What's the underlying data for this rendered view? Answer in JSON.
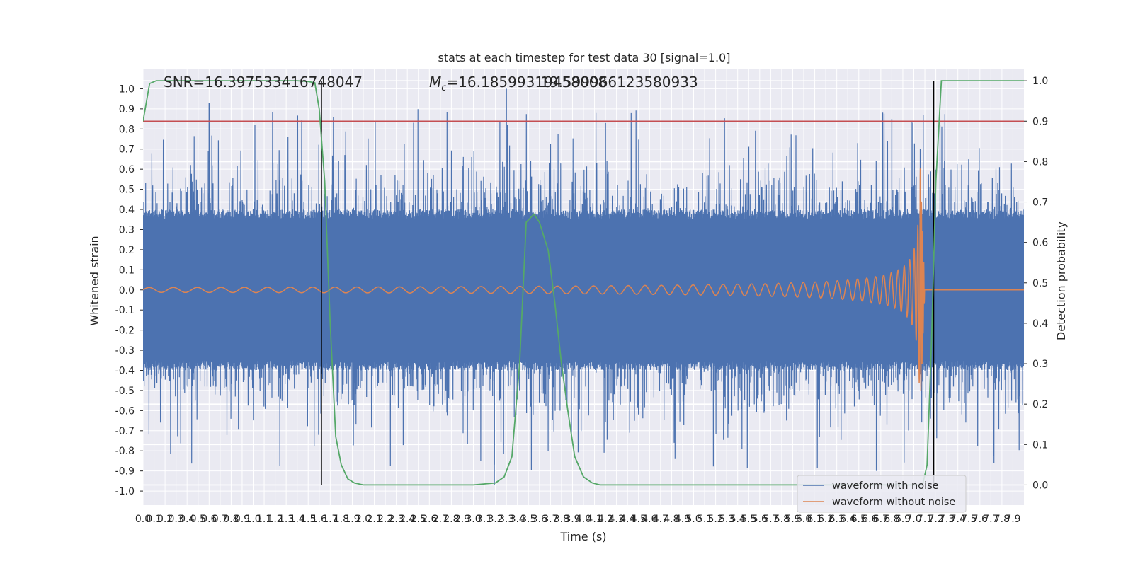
{
  "chart_data": {
    "type": "line",
    "title": "stats at each timestep for test data 30 [signal=1.0]",
    "xlabel": "Time (s)",
    "ylabel": "Whitened strain",
    "ylabel_right": "Detection probability",
    "xlim": [
      0.0,
      8.0
    ],
    "ylim": [
      -1.07,
      1.1
    ],
    "ylim_right": [
      -0.05,
      1.03
    ],
    "x_ticks": [
      "0.0",
      "0.1",
      "0.2",
      "0.3",
      "0.4",
      "0.5",
      "0.6",
      "0.7",
      "0.8",
      "0.9",
      "1.0",
      "1.1",
      "1.2",
      "1.3",
      "1.4",
      "1.5",
      "1.6",
      "1.7",
      "1.8",
      "1.9",
      "2.0",
      "2.1",
      "2.2",
      "2.3",
      "2.4",
      "2.5",
      "2.6",
      "2.7",
      "2.8",
      "2.9",
      "3.0",
      "3.1",
      "3.2",
      "3.3",
      "3.4",
      "3.5",
      "3.6",
      "3.7",
      "3.8",
      "3.9",
      "4.0",
      "4.1",
      "4.2",
      "4.3",
      "4.4",
      "4.5",
      "4.6",
      "4.7",
      "4.8",
      "4.9",
      "5.0",
      "5.1",
      "5.2",
      "5.3",
      "5.4",
      "5.5",
      "5.6",
      "5.7",
      "5.8",
      "5.9",
      "6.0",
      "6.1",
      "6.2",
      "6.3",
      "6.4",
      "6.5",
      "6.6",
      "6.7",
      "6.8",
      "6.9",
      "7.0",
      "7.1",
      "7.2",
      "7.3",
      "7.4",
      "7.5",
      "7.6",
      "7.7",
      "7.8",
      "7.9"
    ],
    "y_ticks_left": [
      "1.0",
      "0.9",
      "0.8",
      "0.7",
      "0.6",
      "0.5",
      "0.4",
      "0.3",
      "0.2",
      "0.1",
      "0.0",
      "-0.1",
      "-0.2",
      "-0.3",
      "-0.4",
      "-0.5",
      "-0.6",
      "-0.7",
      "-0.8",
      "-0.9",
      "-1.0"
    ],
    "y_ticks_right": [
      "1.0",
      "0.9",
      "0.8",
      "0.7",
      "0.6",
      "0.5",
      "0.4",
      "0.3",
      "0.2",
      "0.1",
      "0.0"
    ],
    "annotations": {
      "snr": "SNR=16.397533416748047",
      "mc_prefix": "M",
      "mc_sub": "c",
      "mc_value": "=16.18599319458008",
      "mc_overlap": "19.599966123580933"
    },
    "threshold_right": 0.9,
    "threshold_color": "#c44e52",
    "event_markers_x": [
      1.62,
      7.18
    ],
    "marker_color": "#000000",
    "series": [
      {
        "name": "waveform with noise",
        "color": "#4c72b0",
        "envelope_core": 0.4,
        "peak_min": -0.97,
        "peak_max": 1.0
      },
      {
        "name": "waveform without noise",
        "color": "#dd8452",
        "chirp": {
          "start_amplitude": 0.012,
          "peak_time": 7.05,
          "peak_amplitude": 0.73,
          "end_time": 7.1
        }
      },
      {
        "color": "#55a868",
        "axis": "right",
        "x": [
          0.0,
          0.06,
          0.12,
          0.2,
          1.3,
          1.4,
          1.5,
          1.56,
          1.6,
          1.65,
          1.7,
          1.75,
          1.8,
          1.86,
          1.92,
          2.0,
          2.1,
          2.3,
          3.0,
          3.2,
          3.28,
          3.35,
          3.42,
          3.48,
          3.55,
          3.6,
          3.68,
          3.74,
          3.8,
          3.86,
          3.92,
          4.0,
          4.08,
          4.15,
          4.25,
          7.0,
          7.08,
          7.12,
          7.16,
          7.2,
          7.25,
          7.3,
          7.4,
          8.0
        ],
        "y": [
          0.9,
          0.993,
          1.0,
          1.0,
          1.0,
          1.0,
          0.998,
          0.995,
          0.93,
          0.75,
          0.4,
          0.12,
          0.05,
          0.015,
          0.005,
          0.0,
          0.0,
          0.0,
          0.0,
          0.005,
          0.02,
          0.07,
          0.3,
          0.65,
          0.67,
          0.65,
          0.58,
          0.45,
          0.3,
          0.18,
          0.07,
          0.02,
          0.005,
          0.0,
          0.0,
          0.0,
          0.0,
          0.05,
          0.35,
          0.75,
          1.0,
          1.0,
          1.0,
          1.0
        ]
      }
    ],
    "legend": {
      "placement": "lower-right",
      "entries": [
        "waveform with noise",
        "waveform without noise"
      ]
    },
    "style": {
      "axes_bg": "#eaeaf2",
      "grid": true,
      "grid_color": "#ffffff"
    }
  }
}
